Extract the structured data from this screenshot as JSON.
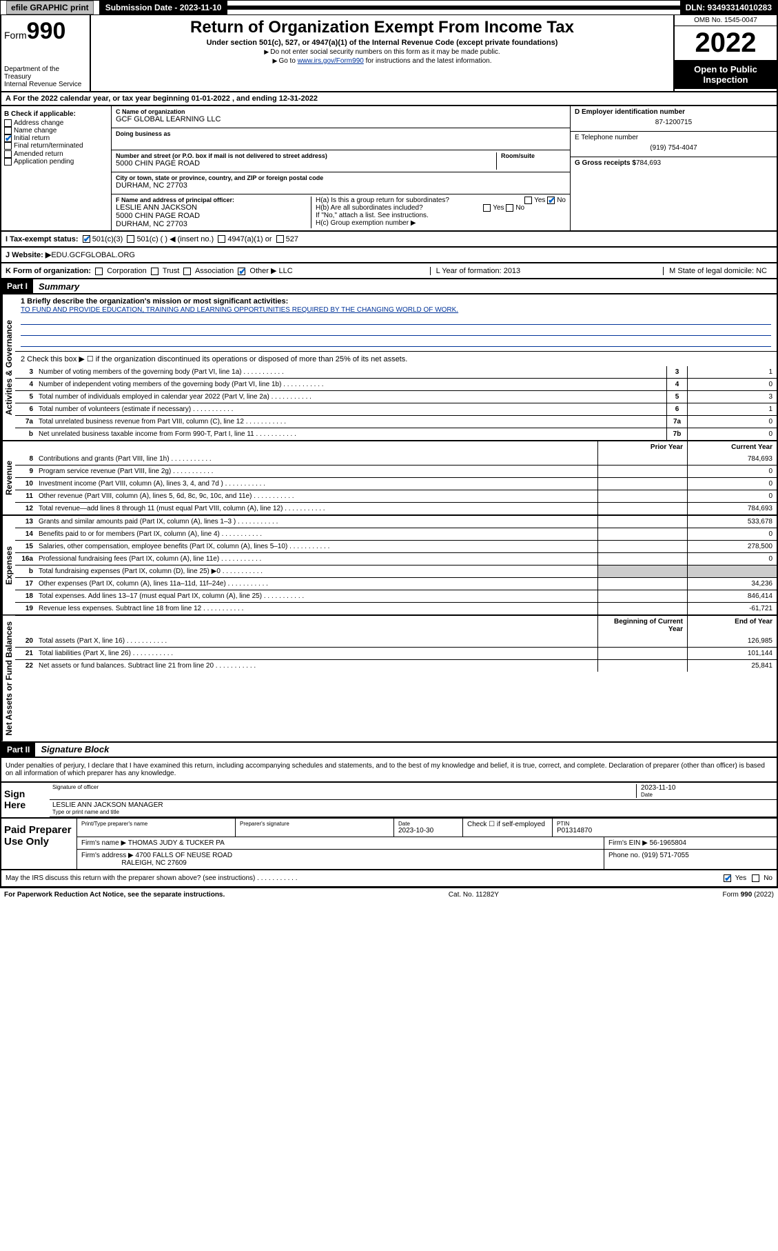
{
  "topbar": {
    "efile": "efile GRAPHIC print",
    "submission_label": "Submission Date - 2023-11-10",
    "dln": "DLN: 93493314010283"
  },
  "header": {
    "form_prefix": "Form",
    "form_number": "990",
    "dept": "Department of the Treasury",
    "irs": "Internal Revenue Service",
    "title": "Return of Organization Exempt From Income Tax",
    "subtitle": "Under section 501(c), 527, or 4947(a)(1) of the Internal Revenue Code (except private foundations)",
    "note1": "Do not enter social security numbers on this form as it may be made public.",
    "note2_pre": "Go to ",
    "note2_link": "www.irs.gov/Form990",
    "note2_post": " for instructions and the latest information.",
    "omb": "OMB No. 1545-0047",
    "year": "2022",
    "open": "Open to Public Inspection"
  },
  "line_a": "For the 2022 calendar year, or tax year beginning 01-01-2022    , and ending 12-31-2022",
  "box_b": {
    "label": "B Check if applicable:",
    "items": [
      "Address change",
      "Name change",
      "Initial return",
      "Final return/terminated",
      "Amended return",
      "Application pending"
    ],
    "checked": [
      false,
      false,
      true,
      false,
      false,
      false
    ]
  },
  "box_c": {
    "name_label": "C Name of organization",
    "name": "GCF GLOBAL LEARNING LLC",
    "dba_label": "Doing business as",
    "dba": "",
    "addr_label": "Number and street (or P.O. box if mail is not delivered to street address)",
    "addr": "5000 CHIN PAGE ROAD",
    "suite_label": "Room/suite",
    "city_label": "City or town, state or province, country, and ZIP or foreign postal code",
    "city": "DURHAM, NC  27703"
  },
  "box_d": {
    "label": "D Employer identification number",
    "value": "87-1200715"
  },
  "box_e": {
    "label": "E Telephone number",
    "value": "(919) 754-4047"
  },
  "box_g": {
    "label": "G Gross receipts $",
    "value": "784,693"
  },
  "box_f": {
    "label": "F  Name and address of principal officer:",
    "name": "LESLIE ANN JACKSON",
    "addr1": "5000 CHIN PAGE ROAD",
    "addr2": "DURHAM, NC  27703"
  },
  "box_h": {
    "ha": "H(a)  Is this a group return for subordinates?",
    "hb": "H(b)  Are all subordinates included?",
    "hb_note": "If \"No,\" attach a list. See instructions.",
    "hc": "H(c)  Group exemption number ▶"
  },
  "row_i": {
    "label": "I    Tax-exempt status:",
    "opts": [
      "501(c)(3)",
      "501(c) (   ) ◀ (insert no.)",
      "4947(a)(1) or",
      "527"
    ]
  },
  "row_j": {
    "label": "J    Website: ▶",
    "value": "  EDU.GCFGLOBAL.ORG"
  },
  "row_k": {
    "label": "K Form of organization:",
    "opts": [
      "Corporation",
      "Trust",
      "Association",
      "Other ▶"
    ],
    "other_val": "LLC",
    "l": "L Year of formation: 2013",
    "m": "M State of legal domicile: NC"
  },
  "part1": {
    "header": "Part I",
    "title": "Summary",
    "line1_label": "1  Briefly describe the organization's mission or most significant activities:",
    "line1_text": "TO FUND AND PROVIDE EDUCATION, TRAINING AND LEARNING OPPORTUNITIES REQUIRED BY THE CHANGING WORLD OF WORK.",
    "line2": "2   Check this box ▶ ☐  if the organization discontinued its operations or disposed of more than 25% of its net assets.",
    "governance_label": "Activities & Governance",
    "revenue_label": "Revenue",
    "expenses_label": "Expenses",
    "netassets_label": "Net Assets or Fund Balances",
    "lines_gov": [
      {
        "n": "3",
        "d": "Number of voting members of the governing body (Part VI, line 1a)",
        "c": "3",
        "v": "1"
      },
      {
        "n": "4",
        "d": "Number of independent voting members of the governing body (Part VI, line 1b)",
        "c": "4",
        "v": "0"
      },
      {
        "n": "5",
        "d": "Total number of individuals employed in calendar year 2022 (Part V, line 2a)",
        "c": "5",
        "v": "3"
      },
      {
        "n": "6",
        "d": "Total number of volunteers (estimate if necessary)",
        "c": "6",
        "v": "1"
      },
      {
        "n": "7a",
        "d": "Total unrelated business revenue from Part VIII, column (C), line 12",
        "c": "7a",
        "v": "0"
      },
      {
        "n": "b",
        "d": "Net unrelated business taxable income from Form 990-T, Part I, line 11",
        "c": "7b",
        "v": "0"
      }
    ],
    "col_headers": {
      "prior": "Prior Year",
      "current": "Current Year"
    },
    "lines_rev": [
      {
        "n": "8",
        "d": "Contributions and grants (Part VIII, line 1h)",
        "p": "",
        "c": "784,693"
      },
      {
        "n": "9",
        "d": "Program service revenue (Part VIII, line 2g)",
        "p": "",
        "c": "0"
      },
      {
        "n": "10",
        "d": "Investment income (Part VIII, column (A), lines 3, 4, and 7d )",
        "p": "",
        "c": "0"
      },
      {
        "n": "11",
        "d": "Other revenue (Part VIII, column (A), lines 5, 6d, 8c, 9c, 10c, and 11e)",
        "p": "",
        "c": "0"
      },
      {
        "n": "12",
        "d": "Total revenue—add lines 8 through 11 (must equal Part VIII, column (A), line 12)",
        "p": "",
        "c": "784,693"
      }
    ],
    "lines_exp": [
      {
        "n": "13",
        "d": "Grants and similar amounts paid (Part IX, column (A), lines 1–3 )",
        "p": "",
        "c": "533,678"
      },
      {
        "n": "14",
        "d": "Benefits paid to or for members (Part IX, column (A), line 4)",
        "p": "",
        "c": "0"
      },
      {
        "n": "15",
        "d": "Salaries, other compensation, employee benefits (Part IX, column (A), lines 5–10)",
        "p": "",
        "c": "278,500"
      },
      {
        "n": "16a",
        "d": "Professional fundraising fees (Part IX, column (A), line 11e)",
        "p": "",
        "c": "0"
      },
      {
        "n": "b",
        "d": "Total fundraising expenses (Part IX, column (D), line 25) ▶0",
        "p": null,
        "c": null
      },
      {
        "n": "17",
        "d": "Other expenses (Part IX, column (A), lines 11a–11d, 11f–24e)",
        "p": "",
        "c": "34,236"
      },
      {
        "n": "18",
        "d": "Total expenses. Add lines 13–17 (must equal Part IX, column (A), line 25)",
        "p": "",
        "c": "846,414"
      },
      {
        "n": "19",
        "d": "Revenue less expenses. Subtract line 18 from line 12",
        "p": "",
        "c": "-61,721"
      }
    ],
    "col_headers2": {
      "prior": "Beginning of Current Year",
      "current": "End of Year"
    },
    "lines_net": [
      {
        "n": "20",
        "d": "Total assets (Part X, line 16)",
        "p": "",
        "c": "126,985"
      },
      {
        "n": "21",
        "d": "Total liabilities (Part X, line 26)",
        "p": "",
        "c": "101,144"
      },
      {
        "n": "22",
        "d": "Net assets or fund balances. Subtract line 21 from line 20",
        "p": "",
        "c": "25,841"
      }
    ]
  },
  "part2": {
    "header": "Part II",
    "title": "Signature Block",
    "penalty": "Under penalties of perjury, I declare that I have examined this return, including accompanying schedules and statements, and to the best of my knowledge and belief, it is true, correct, and complete. Declaration of preparer (other than officer) is based on all information of which preparer has any knowledge.",
    "sign_here": "Sign Here",
    "sig_officer": "Signature of officer",
    "sig_date": "2023-11-10",
    "date_lbl": "Date",
    "officer_name": "LESLIE ANN JACKSON  MANAGER",
    "type_name": "Type or print name and title",
    "paid": "Paid Preparer Use Only",
    "prep_name_lbl": "Print/Type preparer's name",
    "prep_sig_lbl": "Preparer's signature",
    "prep_date_lbl": "Date",
    "prep_date": "2023-10-30",
    "check_self": "Check ☐ if self-employed",
    "ptin_lbl": "PTIN",
    "ptin": "P01314870",
    "firm_name_lbl": "Firm's name    ▶",
    "firm_name": "THOMAS JUDY & TUCKER PA",
    "firm_ein_lbl": "Firm's EIN ▶",
    "firm_ein": "56-1965804",
    "firm_addr_lbl": "Firm's address ▶",
    "firm_addr1": "4700 FALLS OF NEUSE ROAD",
    "firm_addr2": "RALEIGH, NC  27609",
    "phone_lbl": "Phone no.",
    "phone": "(919) 571-7055",
    "discuss": "May the IRS discuss this return with the preparer shown above? (see instructions)",
    "yes": "Yes",
    "no": "No"
  },
  "footer": {
    "left": "For Paperwork Reduction Act Notice, see the separate instructions.",
    "center": "Cat. No. 11282Y",
    "right": "Form 990 (2022)"
  }
}
